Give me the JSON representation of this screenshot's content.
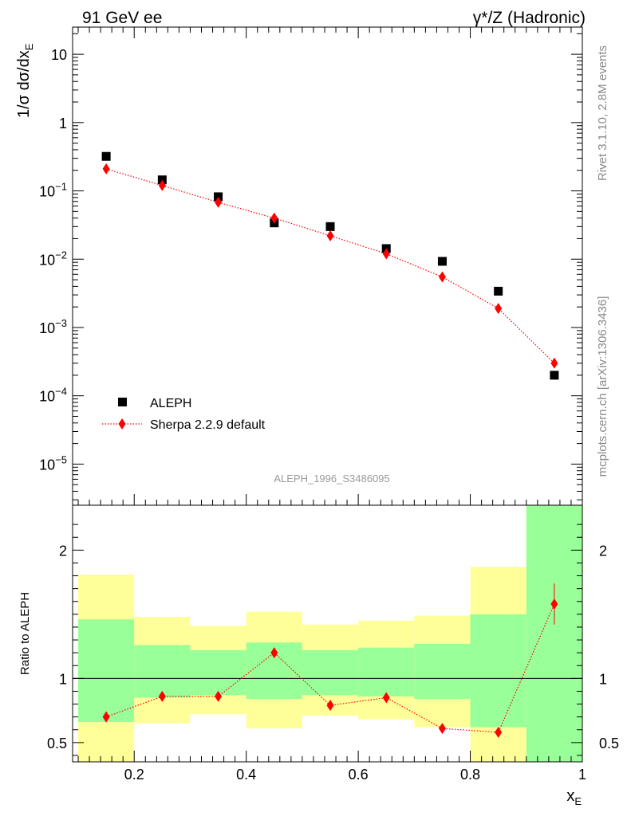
{
  "header": {
    "left": "91 GeV ee",
    "right": "γ*/Z (Hadronic)"
  },
  "side_labels": {
    "rivet": "Rivet 3.1.10,  2.8M events",
    "mcplots": "mcplots.cern.ch [arXiv:1306.3436]"
  },
  "analysis_id": "ALEPH_1996_S3486095",
  "colors": {
    "data": "#000000",
    "mc": "#ff0000",
    "band_inner": "#99ff99",
    "band_outer": "#ffff99"
  },
  "chart_data": [
    {
      "type": "scatter",
      "scale": "log",
      "ylabel": "1/σ dσ/dx_E",
      "ylabel_main": "1/σ dσ/dx",
      "ylabel_sub": "E",
      "xlim": [
        0.09,
        1.0
      ],
      "ylim": [
        2.5e-06,
        25
      ],
      "yticks": [
        {
          "value": 10,
          "base": "10",
          "exp": ""
        },
        {
          "value": 1,
          "base": "1",
          "exp": ""
        },
        {
          "value": 0.1,
          "base": "10",
          "exp": "−1"
        },
        {
          "value": 0.01,
          "base": "10",
          "exp": "−2"
        },
        {
          "value": 0.001,
          "base": "10",
          "exp": "−3"
        },
        {
          "value": 0.0001,
          "base": "10",
          "exp": "−4"
        },
        {
          "value": 1e-05,
          "base": "10",
          "exp": "−5"
        }
      ],
      "legend": {
        "placement": "bottom-left",
        "entries": [
          "ALEPH",
          "Sherpa 2.2.9 default"
        ]
      },
      "series": [
        {
          "name": "ALEPH",
          "marker": "square",
          "x": [
            0.15,
            0.25,
            0.35,
            0.45,
            0.55,
            0.65,
            0.75,
            0.85,
            0.95
          ],
          "values": [
            0.32,
            0.145,
            0.082,
            0.034,
            0.03,
            0.0143,
            0.0093,
            0.0034,
            0.0002
          ]
        },
        {
          "name": "Sherpa 2.2.9 default",
          "marker": "diamond",
          "line": "dotted",
          "x": [
            0.15,
            0.25,
            0.35,
            0.45,
            0.55,
            0.65,
            0.75,
            0.85,
            0.95
          ],
          "values": [
            0.21,
            0.12,
            0.068,
            0.04,
            0.022,
            0.012,
            0.0055,
            0.0019,
            0.0003
          ]
        }
      ]
    },
    {
      "type": "scatter",
      "ylabel": "Ratio to ALEPH",
      "xlabel": "x_E",
      "xlabel_main": "x",
      "xlabel_sub": "E",
      "xlim": [
        0.09,
        1.0
      ],
      "ylim": [
        0.35,
        2.35
      ],
      "xticks": [
        0.2,
        0.4,
        0.6,
        0.8,
        1.0
      ],
      "xtick_labels": [
        "0.2",
        "0.4",
        "0.6",
        "0.8",
        "1"
      ],
      "yticks": [
        0.5,
        1,
        2
      ],
      "ytick_labels": [
        "0.5",
        "1",
        "2"
      ],
      "reference_line": 1,
      "bands": [
        {
          "x0": 0.1,
          "x1": 0.2,
          "inner": [
            0.66,
            1.46
          ],
          "outer": [
            0.35,
            1.81
          ]
        },
        {
          "x0": 0.2,
          "x1": 0.3,
          "inner": [
            0.85,
            1.26
          ],
          "outer": [
            0.65,
            1.48
          ]
        },
        {
          "x0": 0.3,
          "x1": 0.4,
          "inner": [
            0.87,
            1.22
          ],
          "outer": [
            0.72,
            1.41
          ]
        },
        {
          "x0": 0.4,
          "x1": 0.5,
          "inner": [
            0.84,
            1.28
          ],
          "outer": [
            0.61,
            1.52
          ]
        },
        {
          "x0": 0.5,
          "x1": 0.6,
          "inner": [
            0.87,
            1.22
          ],
          "outer": [
            0.71,
            1.42
          ]
        },
        {
          "x0": 0.6,
          "x1": 0.7,
          "inner": [
            0.86,
            1.24
          ],
          "outer": [
            0.68,
            1.45
          ]
        },
        {
          "x0": 0.7,
          "x1": 0.8,
          "inner": [
            0.84,
            1.27
          ],
          "outer": [
            0.62,
            1.49
          ]
        },
        {
          "x0": 0.8,
          "x1": 0.9,
          "inner": [
            0.62,
            1.5
          ],
          "outer": [
            0.35,
            1.87
          ]
        },
        {
          "x0": 0.9,
          "x1": 1.0,
          "inner": [
            0.35,
            2.35
          ],
          "outer": [
            0.35,
            2.35
          ]
        }
      ],
      "series": [
        {
          "name": "Sherpa 2.2.9 default",
          "marker": "diamond",
          "line": "dotted",
          "x": [
            0.15,
            0.25,
            0.35,
            0.45,
            0.55,
            0.65,
            0.75,
            0.85,
            0.95
          ],
          "values": [
            0.7,
            0.86,
            0.86,
            1.2,
            0.79,
            0.85,
            0.61,
            0.58,
            1.58
          ],
          "errors": [
            0,
            0,
            0,
            0,
            0,
            0,
            0,
            0.025,
            0.16
          ]
        }
      ]
    }
  ]
}
